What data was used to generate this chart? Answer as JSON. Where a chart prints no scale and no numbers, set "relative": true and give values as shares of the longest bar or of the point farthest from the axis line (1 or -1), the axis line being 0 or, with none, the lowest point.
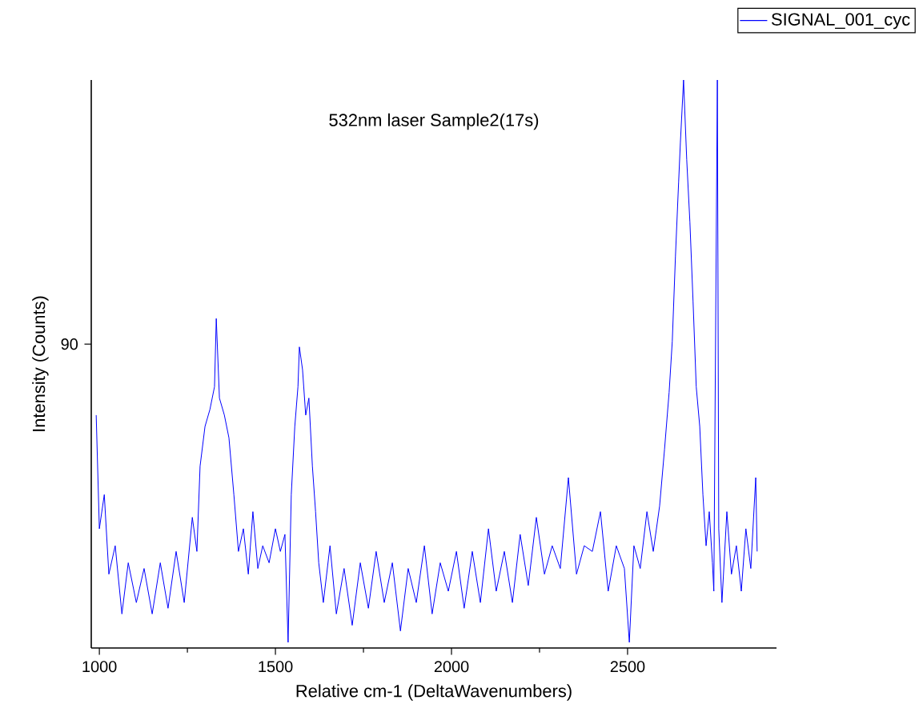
{
  "chart_data": {
    "type": "line",
    "title": "532nm laser  Sample2(17s)",
    "xlabel": "Relative cm-1 (DeltaWavenumbers)",
    "ylabel": "Intensity (Counts)",
    "relative": true,
    "xlim": [
      977,
      2923
    ],
    "xticks": [
      1000,
      1500,
      2000,
      2500
    ],
    "legend": "top right",
    "annotations": [
      "90"
    ],
    "x": [
      991,
      1000,
      1014,
      1027,
      1045,
      1064,
      1082,
      1105,
      1127,
      1150,
      1173,
      1195,
      1218,
      1241,
      1264,
      1277,
      1286,
      1300,
      1314,
      1327,
      1332,
      1341,
      1355,
      1368,
      1382,
      1395,
      1409,
      1423,
      1436,
      1450,
      1464,
      1482,
      1500,
      1514,
      1527,
      1536,
      1545,
      1555,
      1564,
      1568,
      1577,
      1586,
      1595,
      1605,
      1614,
      1623,
      1636,
      1655,
      1673,
      1695,
      1718,
      1741,
      1764,
      1786,
      1809,
      1832,
      1855,
      1877,
      1900,
      1923,
      1945,
      1968,
      1991,
      2014,
      2036,
      2059,
      2082,
      2105,
      2127,
      2150,
      2173,
      2195,
      2218,
      2241,
      2264,
      2286,
      2309,
      2332,
      2355,
      2377,
      2400,
      2423,
      2445,
      2468,
      2491,
      2505,
      2518,
      2536,
      2555,
      2573,
      2591,
      2605,
      2618,
      2627,
      2636,
      2645,
      2650,
      2659,
      2668,
      2677,
      2686,
      2695,
      2705,
      2714,
      2723,
      2732,
      2741,
      2745,
      2755,
      2759,
      2768,
      2782,
      2795,
      2809,
      2823,
      2836,
      2850,
      2864,
      2868
    ],
    "series": [
      {
        "name": "SIGNAL_001_cyc",
        "color": "#0000ff",
        "values": [
          0.41,
          0.21,
          0.27,
          0.13,
          0.18,
          0.06,
          0.15,
          0.08,
          0.14,
          0.06,
          0.15,
          0.07,
          0.17,
          0.08,
          0.23,
          0.17,
          0.32,
          0.39,
          0.42,
          0.46,
          0.58,
          0.44,
          0.41,
          0.37,
          0.27,
          0.17,
          0.21,
          0.13,
          0.24,
          0.14,
          0.18,
          0.15,
          0.21,
          0.17,
          0.2,
          0.01,
          0.27,
          0.39,
          0.46,
          0.53,
          0.49,
          0.41,
          0.44,
          0.32,
          0.24,
          0.15,
          0.08,
          0.18,
          0.06,
          0.14,
          0.04,
          0.15,
          0.07,
          0.17,
          0.08,
          0.15,
          0.03,
          0.14,
          0.08,
          0.18,
          0.06,
          0.15,
          0.1,
          0.17,
          0.07,
          0.17,
          0.08,
          0.21,
          0.1,
          0.17,
          0.08,
          0.2,
          0.11,
          0.23,
          0.13,
          0.18,
          0.14,
          0.3,
          0.13,
          0.18,
          0.17,
          0.24,
          0.1,
          0.18,
          0.14,
          0.01,
          0.18,
          0.14,
          0.24,
          0.17,
          0.25,
          0.35,
          0.45,
          0.54,
          0.69,
          0.82,
          0.89,
          1,
          0.86,
          0.75,
          0.61,
          0.46,
          0.39,
          0.27,
          0.18,
          0.24,
          0.15,
          0.1,
          1,
          0.21,
          0.08,
          0.24,
          0.13,
          0.18,
          0.1,
          0.21,
          0.14,
          0.3,
          0.17
        ]
      }
    ]
  }
}
